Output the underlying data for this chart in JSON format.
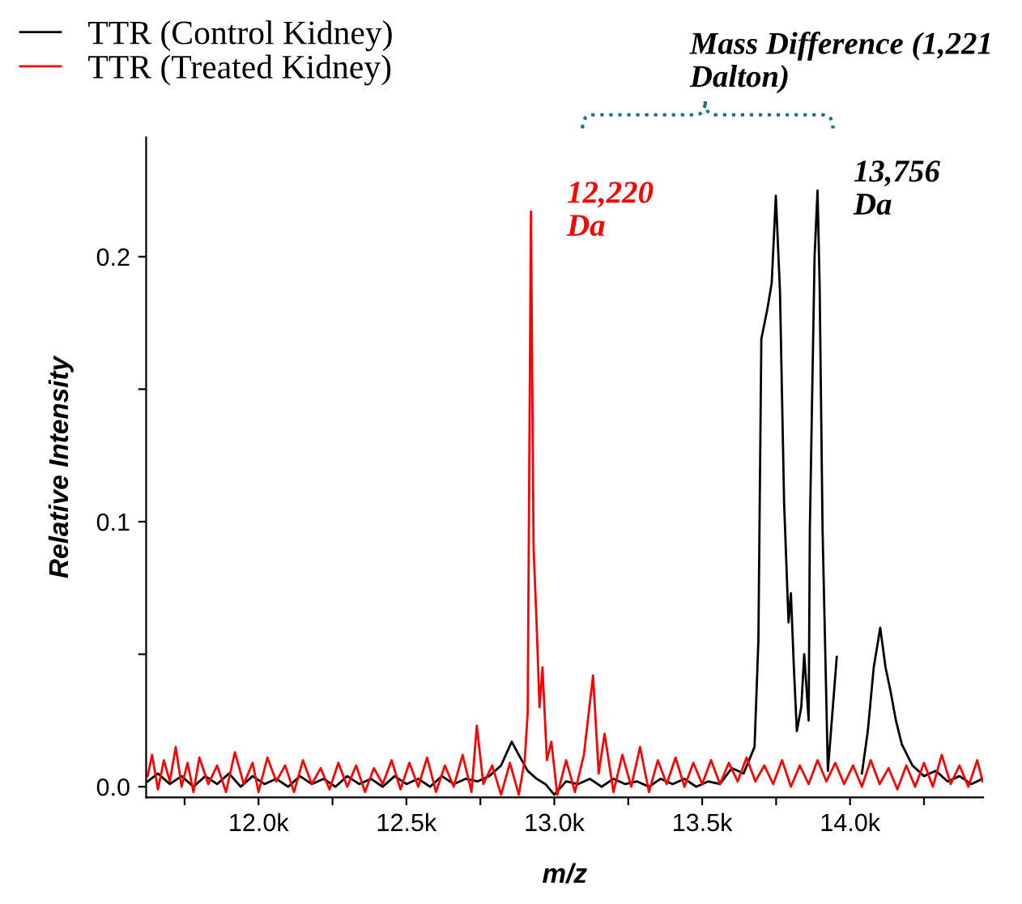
{
  "chart_data": {
    "type": "line",
    "xlabel": "m/z",
    "ylabel": "Relative Intensity",
    "legend": "top left",
    "grid": false,
    "xlim": [
      11620,
      14450
    ],
    "xticks": [
      {
        "value": 11750,
        "label": null
      },
      {
        "value": 12000,
        "label": "12.0k"
      },
      {
        "value": 12250,
        "label": null
      },
      {
        "value": 12500,
        "label": "12.5k"
      },
      {
        "value": 12750,
        "label": null
      },
      {
        "value": 13000,
        "label": "13.0k"
      },
      {
        "value": 13250,
        "label": null
      },
      {
        "value": 13500,
        "label": "13.5k"
      },
      {
        "value": 13750,
        "label": null
      },
      {
        "value": 14000,
        "label": "14.0k"
      },
      {
        "value": 14250,
        "label": null
      }
    ],
    "ylim": [
      -0.004,
      0.245
    ],
    "yticks": [
      {
        "value": 0,
        "label": "0.0"
      },
      {
        "value": 0.05,
        "label": null
      },
      {
        "value": 0.1,
        "label": "0.1"
      },
      {
        "value": 0.15,
        "label": null
      },
      {
        "value": 0.2,
        "label": "0.2"
      }
    ],
    "series": [
      {
        "name": "TTR (Control Kidney)",
        "color": "#000000",
        "x": [
          11625,
          11660,
          11700,
          11740,
          11780,
          11820,
          11860,
          11900,
          11940,
          11980,
          12020,
          12060,
          12100,
          12140,
          12180,
          12220,
          12260,
          12300,
          12340,
          12380,
          12420,
          12460,
          12500,
          12540,
          12580,
          12620,
          12660,
          12700,
          12740,
          12780,
          12820,
          12856,
          12880,
          12910,
          12940,
          12970,
          13000,
          13040,
          13080,
          13120,
          13160,
          13200,
          13240,
          13280,
          13320,
          13360,
          13400,
          13440,
          13480,
          13520,
          13560,
          13600,
          13640,
          13677,
          13690,
          13700,
          13720,
          13735,
          13749,
          13763,
          13777,
          13792,
          13800,
          13810,
          13820,
          13835,
          13845,
          13860,
          13864,
          13880,
          13890,
          13897,
          13907,
          13925,
          13955,
          13973,
          14000,
          14020,
          14040,
          14060,
          14080,
          14102,
          14120,
          14137,
          14155,
          14175,
          14211,
          14250,
          14290,
          14330,
          14370,
          14410,
          14448
        ],
        "values": [
          0.002,
          0.005,
          0.001,
          0.004,
          0.0,
          0.004,
          0.001,
          0.005,
          0.0,
          0.004,
          0.001,
          0.003,
          0.0,
          0.004,
          0.001,
          0.003,
          0.0,
          0.004,
          0.001,
          0.003,
          0.0,
          0.004,
          0.001,
          0.003,
          0.0,
          0.004,
          0.001,
          0.003,
          0.002,
          0.004,
          0.008,
          0.017,
          0.012,
          0.006,
          0.003,
          0.001,
          -0.003,
          0.002,
          0.001,
          0.003,
          0.0,
          0.003,
          0.001,
          0.002,
          0.0,
          0.003,
          0.001,
          0.003,
          0.0,
          0.002,
          0.001,
          0.007,
          0.005,
          0.015,
          0.055,
          0.169,
          0.18,
          0.19,
          0.223,
          0.187,
          0.107,
          0.062,
          0.073,
          0.045,
          0.021,
          0.03,
          0.05,
          0.025,
          0.097,
          0.2,
          0.225,
          0.19,
          0.097,
          0.006,
          0.049,
          null,
          null,
          null,
          0.005,
          0.021,
          0.045,
          0.06,
          0.045,
          0.036,
          0.025,
          0.016,
          0.008,
          0.004,
          0.006,
          0.002,
          0.004,
          0.001,
          0.003
        ]
      },
      {
        "name": "TTR (Treated Kidney)",
        "color": "#ff0000",
        "x": [
          11625,
          11640,
          11660,
          11680,
          11700,
          11720,
          11740,
          11760,
          11780,
          11800,
          11830,
          11860,
          11890,
          11920,
          11950,
          11980,
          12000,
          12030,
          12060,
          12090,
          12120,
          12150,
          12180,
          12210,
          12240,
          12270,
          12300,
          12330,
          12360,
          12390,
          12420,
          12450,
          12480,
          12510,
          12540,
          12570,
          12600,
          12630,
          12660,
          12690,
          12720,
          12738,
          12760,
          12790,
          12820,
          12850,
          12880,
          12900,
          12910,
          12921,
          12930,
          12940,
          12950,
          12960,
          12975,
          12990,
          13010,
          13040,
          13070,
          13100,
          13131,
          13150,
          13170,
          13200,
          13230,
          13260,
          13290,
          13320,
          13350,
          13380,
          13410,
          13440,
          13470,
          13500,
          13530,
          13560,
          13590,
          13620,
          13650,
          13680,
          13710,
          13740,
          13770,
          13800,
          13830,
          13860,
          13890,
          13920,
          13950,
          13980,
          14010,
          14040,
          14070,
          14100,
          14130,
          14160,
          14190,
          14220,
          14250,
          14280,
          14310,
          14340,
          14370,
          14400,
          14430,
          14448
        ],
        "values": [
          0.004,
          0.012,
          -0.001,
          0.01,
          0.002,
          0.015,
          0.0,
          0.009,
          -0.002,
          0.011,
          0.001,
          0.008,
          -0.002,
          0.013,
          0.001,
          0.009,
          -0.002,
          0.011,
          0.002,
          0.008,
          -0.002,
          0.01,
          0.001,
          0.007,
          -0.001,
          0.009,
          0.0,
          0.008,
          -0.002,
          0.007,
          0.001,
          0.01,
          -0.001,
          0.009,
          0.0,
          0.011,
          -0.002,
          0.008,
          0.0,
          0.012,
          -0.002,
          0.023,
          0.001,
          0.008,
          -0.003,
          0.009,
          -0.003,
          0.01,
          0.028,
          0.217,
          0.09,
          0.062,
          0.03,
          0.045,
          0.01,
          0.017,
          -0.003,
          0.01,
          -0.002,
          0.012,
          0.042,
          0.005,
          0.02,
          -0.002,
          0.012,
          0.0,
          0.015,
          -0.002,
          0.01,
          0.001,
          0.011,
          0.0,
          0.009,
          0.001,
          0.01,
          0.001,
          0.009,
          0.002,
          0.011,
          0.002,
          0.008,
          0.001,
          0.01,
          0.0,
          0.008,
          0.001,
          0.01,
          0.002,
          0.009,
          0.001,
          0.008,
          0.0,
          0.01,
          0.001,
          0.007,
          -0.001,
          0.008,
          0.0,
          0.009,
          0.0,
          0.012,
          0.001,
          0.008,
          0.0,
          0.01,
          0.002
        ]
      }
    ],
    "annotations": [
      {
        "text": "12,220\nDa",
        "x": 12921,
        "y": 0.217
      },
      {
        "text": "13,756\nDa",
        "x": 13890,
        "y": 0.225
      },
      "Mass Difference (1,221\nDalton)"
    ]
  }
}
